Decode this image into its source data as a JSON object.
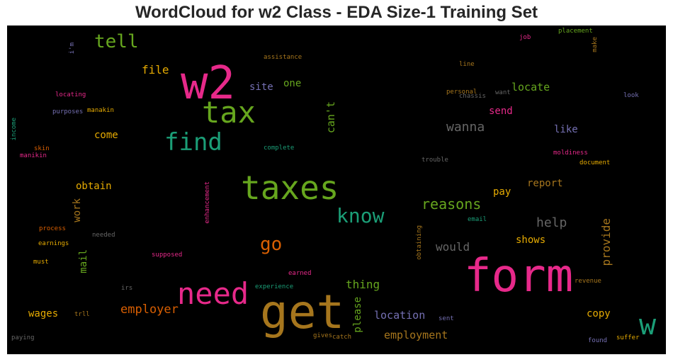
{
  "title": "WordCloud for w2 Class - EDA Size-1 Training Set",
  "chart_data": {
    "type": "wordcloud",
    "background": "#000000",
    "words": [
      {
        "text": "w2",
        "color": "#e7298a"
      },
      {
        "text": "form",
        "color": "#e7298a"
      },
      {
        "text": "get",
        "color": "#a6761d"
      },
      {
        "text": "taxes",
        "color": "#66a61e"
      },
      {
        "text": "need",
        "color": "#e7298a"
      },
      {
        "text": "tax",
        "color": "#66a61e"
      },
      {
        "text": "find",
        "color": "#1b9e77"
      },
      {
        "text": "know",
        "color": "#1b9e77"
      },
      {
        "text": "w",
        "color": "#1b9e77"
      },
      {
        "text": "tell",
        "color": "#66a61e"
      },
      {
        "text": "go",
        "color": "#d95f02"
      },
      {
        "text": "reasons",
        "color": "#66a61e"
      },
      {
        "text": "wanna",
        "color": "#666666"
      },
      {
        "text": "help",
        "color": "#666666"
      },
      {
        "text": "provide",
        "color": "#a6761d"
      },
      {
        "text": "employer",
        "color": "#d95f02"
      },
      {
        "text": "employment",
        "color": "#a6761d"
      },
      {
        "text": "location",
        "color": "#7570b3"
      },
      {
        "text": "thing",
        "color": "#66a61e"
      },
      {
        "text": "would",
        "color": "#666666"
      },
      {
        "text": "file",
        "color": "#e6ab02"
      },
      {
        "text": "can't",
        "color": "#66a61e"
      },
      {
        "text": "locate",
        "color": "#66a61e"
      },
      {
        "text": "site",
        "color": "#7570b3"
      },
      {
        "text": "one",
        "color": "#66a61e"
      },
      {
        "text": "send",
        "color": "#e7298a"
      },
      {
        "text": "like",
        "color": "#7570b3"
      },
      {
        "text": "come",
        "color": "#e6ab02"
      },
      {
        "text": "obtain",
        "color": "#e6ab02"
      },
      {
        "text": "report",
        "color": "#a6761d"
      },
      {
        "text": "pay",
        "color": "#e6ab02"
      },
      {
        "text": "shows",
        "color": "#e6ab02"
      },
      {
        "text": "work",
        "color": "#a6761d"
      },
      {
        "text": "mail",
        "color": "#66a61e"
      },
      {
        "text": "wages",
        "color": "#e6ab02"
      },
      {
        "text": "please",
        "color": "#66a61e"
      },
      {
        "text": "copy",
        "color": "#e6ab02"
      },
      {
        "text": "i'm",
        "color": "#7570b3"
      },
      {
        "text": "assistance",
        "color": "#a6761d"
      },
      {
        "text": "line",
        "color": "#a6761d"
      },
      {
        "text": "job",
        "color": "#e7298a"
      },
      {
        "text": "placement",
        "color": "#66a61e"
      },
      {
        "text": "make",
        "color": "#a6761d"
      },
      {
        "text": "personal",
        "color": "#a6761d"
      },
      {
        "text": "want",
        "color": "#666666"
      },
      {
        "text": "look",
        "color": "#7570b3"
      },
      {
        "text": "chassis",
        "color": "#666666"
      },
      {
        "text": "locating",
        "color": "#e7298a"
      },
      {
        "text": "purposes",
        "color": "#7570b3"
      },
      {
        "text": "manakin",
        "color": "#e6ab02"
      },
      {
        "text": "income",
        "color": "#1b9e77"
      },
      {
        "text": "skin",
        "color": "#d95f02"
      },
      {
        "text": "manikin",
        "color": "#e7298a"
      },
      {
        "text": "complete",
        "color": "#1b9e77"
      },
      {
        "text": "trouble",
        "color": "#666666"
      },
      {
        "text": "moldiness",
        "color": "#e7298a"
      },
      {
        "text": "document",
        "color": "#e6ab02"
      },
      {
        "text": "enhancement",
        "color": "#e7298a"
      },
      {
        "text": "process",
        "color": "#d95f02"
      },
      {
        "text": "needed",
        "color": "#666666"
      },
      {
        "text": "earnings",
        "color": "#e6ab02"
      },
      {
        "text": "must",
        "color": "#e6ab02"
      },
      {
        "text": "supposed",
        "color": "#e7298a"
      },
      {
        "text": "obtaining",
        "color": "#a6761d"
      },
      {
        "text": "email",
        "color": "#1b9e77"
      },
      {
        "text": "earned",
        "color": "#e7298a"
      },
      {
        "text": "irs",
        "color": "#666666"
      },
      {
        "text": "experience",
        "color": "#1b9e77"
      },
      {
        "text": "revenue",
        "color": "#a6761d"
      },
      {
        "text": "trll",
        "color": "#a6761d"
      },
      {
        "text": "sent",
        "color": "#7570b3"
      },
      {
        "text": "gives",
        "color": "#a6761d"
      },
      {
        "text": "catch",
        "color": "#a6761d"
      },
      {
        "text": "paying",
        "color": "#666666"
      },
      {
        "text": "found",
        "color": "#7570b3"
      },
      {
        "text": "suffer",
        "color": "#e6ab02"
      }
    ]
  }
}
